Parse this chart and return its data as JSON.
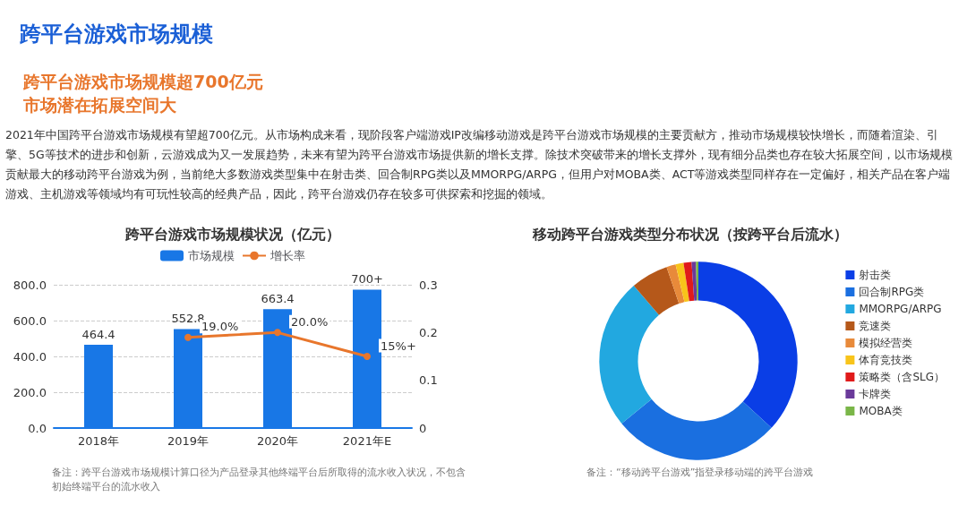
{
  "chart_data": [
    {
      "type": "bar",
      "title": "跨平台游戏市场规模状况（亿元）",
      "categories": [
        "2018年",
        "2019年",
        "2020年",
        "2021年E"
      ],
      "series": [
        {
          "name": "市场规模",
          "color": "#1877e6",
          "values": [
            464.4,
            552.8,
            663.4,
            773
          ],
          "value_labels": [
            "464.4",
            "552.8",
            "663.4",
            "700+"
          ]
        },
        {
          "name": "增长率",
          "type": "line",
          "axis": "y2",
          "color": "#e8762c",
          "values": [
            null,
            0.19,
            0.2,
            0.15
          ],
          "value_labels": [
            null,
            "19.0%",
            "20.0%",
            "15%+"
          ]
        }
      ],
      "ylim": [
        0,
        800
      ],
      "yticks": [
        {
          "value": 0,
          "label": "0.0"
        },
        {
          "value": 200,
          "label": "200.0"
        },
        {
          "value": 400,
          "label": "400.0"
        },
        {
          "value": 600,
          "label": "600.0"
        },
        {
          "value": 800,
          "label": "800.0"
        }
      ],
      "y2lim": [
        0,
        0.3
      ],
      "y2ticks": [
        0,
        0.1,
        0.2,
        0.3
      ],
      "grid": "y",
      "legend": "top",
      "marker": "circle",
      "annotations": [
        "跨平台游戏市场规模",
        "跨平台游戏市场规模超700亿元",
        "市场潜在拓展空间大",
        "2021年中国跨平台游戏市场规模有望超700亿元。从市场构成来看，现阶段客户端游戏IP改编移动游戏是跨平台游戏市场规模的主要贡献方，推动市场规模较快增长，而随着渲染、引擎、5G等技术的进步和创新，云游戏成为又一发展趋势，未来有望为跨平台游戏市场提供新的增长支撑。除技术突破带来的增长支撑外，现有细分品类也存在较大拓展空间，以市场规模贡献最大的移动跨平台游戏为例，当前绝大多数游戏类型集中在射击类、回合制RPG类以及MMORPG/ARPG，但用户对MOBA类、ACT等游戏类型同样存在一定偏好，相关产品在客户端游戏、主机游戏等领域均有可玩性较高的经典产品，因此，跨平台游戏仍存在较多可供探索和挖掘的领域。",
        "备注：跨平台游戏市场规模计算口径为产品登录其他终端平台后所取得的流水收入状况，不包含初始终端平台的流水收入"
      ]
    },
    {
      "type": "donut",
      "title": "移动跨平台游戏类型分布状况（按跨平台后流水）",
      "categories": [
        "射击类",
        "回合制RPG类",
        "MMORPG/ARPG",
        "竞速类",
        "模拟经营类",
        "体育竞技类",
        "策略类（含SLG）",
        "卡牌类",
        "MOBA类"
      ],
      "values": [
        36.8,
        27.3,
        24.6,
        6.1,
        1.5,
        1.3,
        1.3,
        0.7,
        0.4
      ],
      "colors": [
        "#0a3ee6",
        "#1a6fe0",
        "#22a8e0",
        "#b5581a",
        "#e88a3a",
        "#f8c41a",
        "#e01a1a",
        "#6a3a9a",
        "#7ab648"
      ],
      "legend": "right",
      "annotations": [
        "备注：“移动跨平台游戏”指登录移动端的跨平台游戏"
      ]
    }
  ]
}
